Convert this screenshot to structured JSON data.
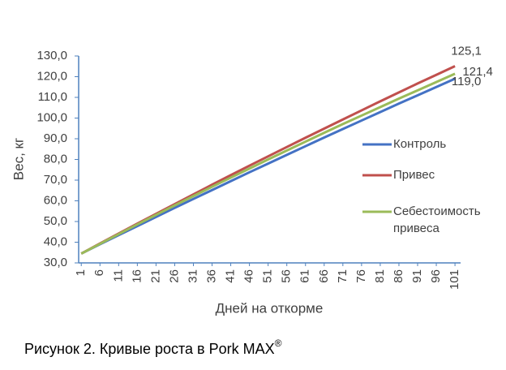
{
  "chart_data": {
    "type": "line",
    "y_label": "Вес, кг",
    "x_label": "Дней на откорме",
    "caption": "Рисунок 2. Кривые роста в Pork MAX",
    "caption_mark": "®",
    "x": [
      1,
      6,
      11,
      16,
      21,
      26,
      31,
      36,
      41,
      46,
      51,
      56,
      61,
      66,
      71,
      76,
      81,
      86,
      91,
      96,
      101
    ],
    "xlim": [
      0.3,
      102.5
    ],
    "xticks": [
      1,
      6,
      11,
      16,
      21,
      26,
      31,
      36,
      41,
      46,
      51,
      56,
      61,
      66,
      71,
      76,
      81,
      86,
      91,
      96,
      101
    ],
    "ylim": [
      30,
      130
    ],
    "yticks": [
      {
        "value": 30,
        "label": "30,0"
      },
      {
        "value": 40,
        "label": "40,0"
      },
      {
        "value": 50,
        "label": "50,0"
      },
      {
        "value": 60,
        "label": "60,0"
      },
      {
        "value": 70,
        "label": "70,0"
      },
      {
        "value": 80,
        "label": "80,0"
      },
      {
        "value": 90,
        "label": "90,0"
      },
      {
        "value": 100,
        "label": "100,0"
      },
      {
        "value": 110,
        "label": "110,0"
      },
      {
        "value": 120,
        "label": "120,0"
      },
      {
        "value": 130,
        "label": "130,0"
      }
    ],
    "grid": false,
    "legend": "right",
    "series": [
      {
        "name": "Контроль",
        "color": "#4472c4",
        "values": [
          34.5,
          39.0,
          43.4,
          47.8,
          52.2,
          56.6,
          60.9,
          65.2,
          69.5,
          73.8,
          78.0,
          82.2,
          86.4,
          90.6,
          94.7,
          98.8,
          102.9,
          107.0,
          111.0,
          115.0,
          119.0
        ],
        "value_labels": [
          null,
          null,
          null,
          null,
          null,
          null,
          null,
          null,
          null,
          null,
          null,
          null,
          null,
          null,
          null,
          null,
          null,
          null,
          null,
          null,
          "119,0"
        ]
      },
      {
        "name": "Привес",
        "color": "#c0504d",
        "values": [
          34.5,
          39.4,
          44.2,
          49.0,
          53.7,
          58.4,
          63.1,
          67.8,
          72.4,
          77.0,
          81.5,
          86.0,
          90.5,
          94.9,
          99.3,
          103.7,
          108.1,
          112.4,
          116.7,
          120.9,
          125.1
        ],
        "value_labels": [
          null,
          null,
          null,
          null,
          null,
          null,
          null,
          null,
          null,
          null,
          null,
          null,
          null,
          null,
          null,
          null,
          null,
          null,
          null,
          null,
          "125,1"
        ]
      },
      {
        "name": "Себестоимость привеса",
        "color": "#9bbb59",
        "values": [
          34.5,
          39.2,
          43.9,
          48.6,
          53.2,
          57.8,
          62.3,
          66.8,
          71.2,
          75.6,
          80.0,
          84.3,
          88.6,
          92.9,
          97.1,
          101.2,
          105.3,
          109.4,
          113.4,
          117.4,
          121.4
        ],
        "value_labels": [
          null,
          null,
          null,
          null,
          null,
          null,
          null,
          null,
          null,
          null,
          null,
          null,
          null,
          null,
          null,
          null,
          null,
          null,
          null,
          null,
          "121,4"
        ]
      }
    ]
  }
}
